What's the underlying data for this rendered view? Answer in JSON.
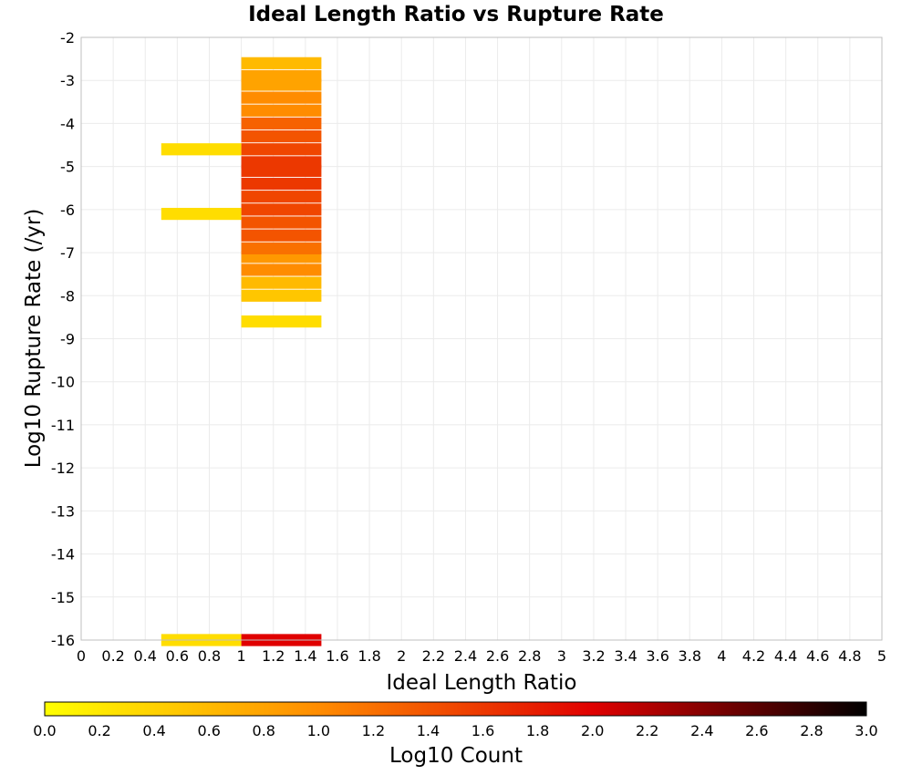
{
  "chart_data": {
    "type": "heatmap",
    "title": "Ideal Length Ratio vs Rupture Rate",
    "xlabel": "Ideal Length Ratio",
    "ylabel": "Log10 Rupture Rate (/yr)",
    "xlim": [
      0,
      5
    ],
    "ylim": [
      -16,
      -2
    ],
    "x_ticks": [
      "0",
      "0.2",
      "0.4",
      "0.6",
      "0.8",
      "1",
      "1.2",
      "1.4",
      "1.6",
      "1.8",
      "2",
      "2.2",
      "2.4",
      "2.6",
      "2.8",
      "3",
      "3.2",
      "3.4",
      "3.6",
      "3.8",
      "4",
      "4.2",
      "4.4",
      "4.6",
      "4.8",
      "5"
    ],
    "y_ticks": [
      "-2",
      "-3",
      "-4",
      "-5",
      "-6",
      "-7",
      "-8",
      "-9",
      "-10",
      "-11",
      "-12",
      "-13",
      "-14",
      "-15",
      "-16"
    ],
    "grid": true,
    "bin_width_x": 0.5,
    "bin_height_y": 0.28,
    "cells": [
      {
        "x0": 0.5,
        "x1": 1.0,
        "y": -16.0,
        "value": 0.3
      },
      {
        "x0": 0.5,
        "x1": 1.0,
        "y": -6.1,
        "value": 0.3
      },
      {
        "x0": 0.5,
        "x1": 1.0,
        "y": -4.6,
        "value": 0.3
      },
      {
        "x0": 1.0,
        "x1": 1.5,
        "y": -16.0,
        "value": 2.0
      },
      {
        "x0": 1.0,
        "x1": 1.5,
        "y": -8.6,
        "value": 0.3
      },
      {
        "x0": 1.0,
        "x1": 1.5,
        "y": -8.0,
        "value": 0.5
      },
      {
        "x0": 1.0,
        "x1": 1.5,
        "y": -7.7,
        "value": 0.6
      },
      {
        "x0": 1.0,
        "x1": 1.5,
        "y": -7.4,
        "value": 1.0
      },
      {
        "x0": 1.0,
        "x1": 1.5,
        "y": -7.1,
        "value": 0.9
      },
      {
        "x0": 1.0,
        "x1": 1.5,
        "y": -6.9,
        "value": 1.2
      },
      {
        "x0": 1.0,
        "x1": 1.5,
        "y": -6.6,
        "value": 1.4
      },
      {
        "x0": 1.0,
        "x1": 1.5,
        "y": -6.3,
        "value": 1.4
      },
      {
        "x0": 1.0,
        "x1": 1.5,
        "y": -6.0,
        "value": 1.5
      },
      {
        "x0": 1.0,
        "x1": 1.5,
        "y": -5.7,
        "value": 1.5
      },
      {
        "x0": 1.0,
        "x1": 1.5,
        "y": -5.4,
        "value": 1.6
      },
      {
        "x0": 1.0,
        "x1": 1.5,
        "y": -5.1,
        "value": 1.6
      },
      {
        "x0": 1.0,
        "x1": 1.5,
        "y": -4.9,
        "value": 1.6
      },
      {
        "x0": 1.0,
        "x1": 1.5,
        "y": -4.6,
        "value": 1.5
      },
      {
        "x0": 1.0,
        "x1": 1.5,
        "y": -4.3,
        "value": 1.4
      },
      {
        "x0": 1.0,
        "x1": 1.5,
        "y": -4.0,
        "value": 1.3
      },
      {
        "x0": 1.0,
        "x1": 1.5,
        "y": -3.7,
        "value": 1.0
      },
      {
        "x0": 1.0,
        "x1": 1.5,
        "y": -3.4,
        "value": 1.0
      },
      {
        "x0": 1.0,
        "x1": 1.5,
        "y": -3.1,
        "value": 0.8
      },
      {
        "x0": 1.0,
        "x1": 1.5,
        "y": -2.9,
        "value": 0.8
      },
      {
        "x0": 1.0,
        "x1": 1.5,
        "y": -2.6,
        "value": 0.6
      }
    ],
    "colorbar": {
      "label": "Log10 Count",
      "range": [
        0.0,
        3.0
      ],
      "ticks": [
        "0.0",
        "0.2",
        "0.4",
        "0.6",
        "0.8",
        "1.0",
        "1.2",
        "1.4",
        "1.6",
        "1.8",
        "2.0",
        "2.2",
        "2.4",
        "2.6",
        "2.8",
        "3.0"
      ],
      "colors": [
        "#ffff00",
        "#ff8c00",
        "#e00000",
        "#000000"
      ]
    },
    "colors": {
      "grid": "#ebebeb",
      "frame": "#bfbfbf"
    }
  }
}
